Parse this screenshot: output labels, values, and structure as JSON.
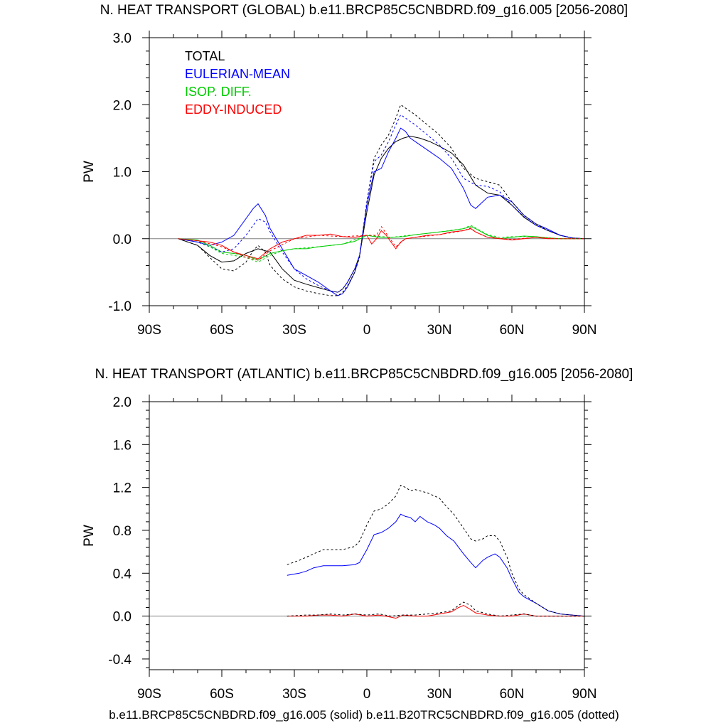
{
  "titles": {
    "global": "N. HEAT TRANSPORT (GLOBAL) b.e11.BRCP85C5CNBDRD.f09_g16.005 [2056-2080]",
    "atlantic": "N. HEAT TRANSPORT (ATLANTIC) b.e11.BRCP85C5CNBDRD.f09_g16.005 [2056-2080]"
  },
  "footer": "b.e11.BRCP85C5CNBDRD.f09_g16.005 (solid) b.e11.B20TRC5CNBDRD.f09_g16.005 (dotted)",
  "colors": {
    "total": "#000000",
    "eulerian": "#0000ff",
    "isop": "#00cc00",
    "eddy": "#ff0000",
    "zero_line": "#808080"
  },
  "chart_data": [
    {
      "type": "line",
      "title": "N. HEAT TRANSPORT (GLOBAL) b.e11.BRCP85C5CNBDRD.f09_g16.005 [2056-2080]",
      "xlabel": "",
      "ylabel": "PW",
      "xlim": [
        -90,
        90
      ],
      "ylim": [
        -1.0,
        3.0
      ],
      "xticks": [
        -90,
        -60,
        -30,
        0,
        30,
        60,
        90
      ],
      "xtick_labels": [
        "90S",
        "60S",
        "30S",
        "0",
        "30N",
        "60N",
        "90N"
      ],
      "yticks": [
        -1.0,
        0.0,
        1.0,
        2.0,
        3.0
      ],
      "ytick_labels": [
        "-1.0",
        "0.0",
        "1.0",
        "2.0",
        "3.0"
      ],
      "grid": false,
      "legend": {
        "position": "top-left",
        "entries": [
          "TOTAL",
          "EULERIAN-MEAN",
          "ISOP. DIFF.",
          "EDDY-INDUCED"
        ]
      },
      "series": [
        {
          "name": "TOTAL",
          "color": "#000000",
          "style": "solid",
          "x": [
            -78,
            -70,
            -65,
            -60,
            -55,
            -50,
            -45,
            -40,
            -35,
            -30,
            -25,
            -20,
            -15,
            -12,
            -10,
            -8,
            -5,
            -3,
            0,
            3,
            6,
            9,
            12,
            15,
            18,
            22,
            26,
            30,
            35,
            40,
            45,
            50,
            55,
            60,
            65,
            70,
            75,
            80,
            85,
            90
          ],
          "y": [
            0,
            -0.1,
            -0.25,
            -0.35,
            -0.33,
            -0.22,
            -0.15,
            -0.2,
            -0.45,
            -0.62,
            -0.68,
            -0.73,
            -0.78,
            -0.8,
            -0.75,
            -0.65,
            -0.45,
            -0.25,
            0.4,
            0.95,
            1.2,
            1.35,
            1.45,
            1.5,
            1.53,
            1.5,
            1.45,
            1.38,
            1.28,
            1.1,
            0.8,
            0.68,
            0.65,
            0.5,
            0.32,
            0.2,
            0.12,
            0.05,
            0.01,
            0
          ]
        },
        {
          "name": "EULERIAN-MEAN",
          "color": "#0000ff",
          "style": "solid",
          "x": [
            -78,
            -70,
            -65,
            -60,
            -55,
            -50,
            -47,
            -45,
            -42,
            -40,
            -35,
            -30,
            -25,
            -20,
            -15,
            -12,
            -10,
            -8,
            -5,
            -3,
            0,
            3,
            6,
            9,
            12,
            14,
            16,
            18,
            22,
            26,
            30,
            35,
            40,
            43,
            45,
            50,
            55,
            60,
            65,
            70,
            75,
            80,
            85,
            90
          ],
          "y": [
            0,
            -0.05,
            -0.1,
            -0.05,
            0.05,
            0.3,
            0.45,
            0.52,
            0.35,
            0.15,
            -0.15,
            -0.45,
            -0.55,
            -0.65,
            -0.78,
            -0.85,
            -0.82,
            -0.72,
            -0.5,
            -0.25,
            0.5,
            1.0,
            1.05,
            1.3,
            1.5,
            1.65,
            1.6,
            1.5,
            1.4,
            1.3,
            1.2,
            1.05,
            0.75,
            0.5,
            0.45,
            0.62,
            0.65,
            0.55,
            0.35,
            0.22,
            0.14,
            0.05,
            0.01,
            0
          ]
        },
        {
          "name": "ISOP. DIFF.",
          "color": "#00cc00",
          "style": "solid",
          "x": [
            -78,
            -70,
            -65,
            -60,
            -55,
            -50,
            -45,
            -40,
            -35,
            -30,
            -25,
            -20,
            -15,
            -10,
            -5,
            0,
            5,
            10,
            15,
            20,
            25,
            30,
            35,
            40,
            43,
            45,
            50,
            55,
            60,
            65,
            70,
            75,
            80,
            90
          ],
          "y": [
            0,
            -0.02,
            -0.1,
            -0.2,
            -0.22,
            -0.25,
            -0.32,
            -0.22,
            -0.18,
            -0.15,
            -0.15,
            -0.12,
            -0.1,
            -0.08,
            -0.04,
            0.05,
            0.02,
            0.02,
            0.03,
            0.06,
            0.08,
            0.1,
            0.12,
            0.15,
            0.18,
            0.15,
            0.05,
            0.0,
            0.02,
            0.04,
            0.03,
            0.01,
            0.0,
            0
          ]
        },
        {
          "name": "EDDY-INDUCED",
          "color": "#ff0000",
          "style": "solid",
          "x": [
            -78,
            -70,
            -65,
            -60,
            -55,
            -50,
            -45,
            -40,
            -35,
            -30,
            -25,
            -20,
            -15,
            -10,
            -5,
            0,
            2,
            4,
            6,
            8,
            10,
            12,
            14,
            16,
            20,
            25,
            30,
            35,
            40,
            43,
            45,
            50,
            55,
            60,
            65,
            70,
            75,
            80,
            90
          ],
          "y": [
            0,
            -0.03,
            -0.05,
            -0.1,
            -0.2,
            -0.25,
            -0.3,
            -0.15,
            -0.05,
            0.0,
            0.05,
            0.05,
            0.07,
            0.03,
            0.02,
            0.05,
            -0.08,
            0.0,
            0.12,
            0.05,
            -0.05,
            -0.15,
            -0.05,
            0.0,
            0.02,
            0.05,
            0.06,
            0.1,
            0.12,
            0.15,
            0.1,
            0.02,
            0.0,
            -0.02,
            0.0,
            0.02,
            0.0,
            0.0,
            0
          ]
        },
        {
          "name": "TOTAL (dotted)",
          "color": "#000000",
          "style": "dotted",
          "x": [
            -78,
            -70,
            -65,
            -60,
            -55,
            -50,
            -47,
            -45,
            -42,
            -40,
            -35,
            -30,
            -25,
            -20,
            -15,
            -12,
            -10,
            -8,
            -5,
            -3,
            0,
            3,
            6,
            9,
            12,
            14,
            16,
            20,
            25,
            30,
            35,
            40,
            45,
            50,
            55,
            60,
            65,
            70,
            75,
            80,
            85,
            90
          ],
          "y": [
            0,
            -0.1,
            -0.28,
            -0.45,
            -0.48,
            -0.35,
            -0.18,
            -0.1,
            -0.2,
            -0.4,
            -0.6,
            -0.72,
            -0.78,
            -0.82,
            -0.85,
            -0.85,
            -0.8,
            -0.7,
            -0.5,
            -0.28,
            0.55,
            1.2,
            1.4,
            1.55,
            1.8,
            2.0,
            1.95,
            1.85,
            1.7,
            1.55,
            1.35,
            1.05,
            0.9,
            0.85,
            0.8,
            0.55,
            0.35,
            0.22,
            0.12,
            0.05,
            0.01,
            0
          ]
        },
        {
          "name": "EULERIAN-MEAN (dotted)",
          "color": "#0000ff",
          "style": "dotted",
          "x": [
            -78,
            -70,
            -65,
            -60,
            -55,
            -50,
            -47,
            -45,
            -42,
            -40,
            -35,
            -30,
            -25,
            -20,
            -15,
            -12,
            -10,
            -8,
            -5,
            -3,
            0,
            3,
            6,
            9,
            12,
            14,
            16,
            20,
            25,
            30,
            35,
            40,
            45,
            50,
            55,
            60,
            65,
            70,
            75,
            80,
            85,
            90
          ],
          "y": [
            0,
            -0.05,
            -0.12,
            -0.2,
            -0.15,
            0.05,
            0.2,
            0.3,
            0.25,
            0.1,
            -0.2,
            -0.45,
            -0.6,
            -0.7,
            -0.78,
            -0.8,
            -0.75,
            -0.65,
            -0.45,
            -0.25,
            0.55,
            1.15,
            1.25,
            1.45,
            1.7,
            1.85,
            1.8,
            1.7,
            1.55,
            1.4,
            1.2,
            0.9,
            0.8,
            0.78,
            0.7,
            0.5,
            0.33,
            0.2,
            0.12,
            0.05,
            0.01,
            0
          ]
        },
        {
          "name": "ISOP. DIFF. (dotted)",
          "color": "#00cc00",
          "style": "dotted",
          "x": [
            -78,
            -70,
            -65,
            -60,
            -55,
            -50,
            -45,
            -40,
            -35,
            -30,
            -20,
            -10,
            0,
            10,
            20,
            30,
            40,
            43,
            45,
            50,
            55,
            60,
            70,
            80,
            90
          ],
          "y": [
            0,
            -0.03,
            -0.12,
            -0.22,
            -0.25,
            -0.28,
            -0.35,
            -0.25,
            -0.18,
            -0.15,
            -0.12,
            -0.08,
            0.05,
            0.02,
            0.06,
            0.1,
            0.15,
            0.2,
            0.16,
            0.06,
            0.02,
            0.03,
            0.03,
            0.0,
            0
          ]
        },
        {
          "name": "EDDY-INDUCED (dotted)",
          "color": "#ff0000",
          "style": "dotted",
          "x": [
            -78,
            -70,
            -60,
            -50,
            -45,
            -40,
            -30,
            -20,
            -10,
            0,
            4,
            6,
            8,
            12,
            16,
            20,
            30,
            40,
            43,
            45,
            50,
            60,
            70,
            80,
            90
          ],
          "y": [
            0,
            -0.03,
            -0.12,
            -0.28,
            -0.32,
            -0.18,
            0.0,
            0.05,
            0.03,
            0.05,
            0.05,
            0.18,
            0.08,
            -0.12,
            0.0,
            0.02,
            0.06,
            0.12,
            0.16,
            0.1,
            0.02,
            -0.01,
            0.02,
            0.0,
            0
          ]
        }
      ]
    },
    {
      "type": "line",
      "title": "N. HEAT TRANSPORT (ATLANTIC) b.e11.BRCP85C5CNBDRD.f09_g16.005 [2056-2080]",
      "xlabel": "",
      "ylabel": "PW",
      "xlim": [
        -90,
        90
      ],
      "ylim": [
        -0.5,
        2.0
      ],
      "xticks": [
        -90,
        -60,
        -30,
        0,
        30,
        60,
        90
      ],
      "xtick_labels": [
        "90S",
        "60S",
        "30S",
        "0",
        "30N",
        "60N",
        "90N"
      ],
      "yticks": [
        -0.4,
        0.0,
        0.4,
        0.8,
        1.2,
        1.6,
        2.0
      ],
      "ytick_labels": [
        "-0.4",
        "0.0",
        "0.4",
        "0.8",
        "1.2",
        "1.6",
        "2.0"
      ],
      "grid": false,
      "series": [
        {
          "name": "EULERIAN-MEAN",
          "color": "#0000ff",
          "style": "solid",
          "x": [
            -33,
            -28,
            -25,
            -22,
            -18,
            -15,
            -10,
            -5,
            -3,
            0,
            3,
            6,
            9,
            12,
            14,
            16,
            18,
            20,
            22,
            25,
            28,
            30,
            33,
            36,
            40,
            43,
            45,
            48,
            50,
            53,
            55,
            58,
            60,
            63,
            65,
            70,
            75,
            80,
            85,
            90
          ],
          "y": [
            0.38,
            0.4,
            0.42,
            0.45,
            0.47,
            0.47,
            0.47,
            0.48,
            0.5,
            0.62,
            0.76,
            0.78,
            0.82,
            0.88,
            0.95,
            0.93,
            0.92,
            0.88,
            0.93,
            0.88,
            0.85,
            0.82,
            0.75,
            0.7,
            0.58,
            0.5,
            0.45,
            0.52,
            0.55,
            0.58,
            0.55,
            0.45,
            0.35,
            0.22,
            0.18,
            0.12,
            0.05,
            0.02,
            0.01,
            0
          ]
        },
        {
          "name": "EULERIAN-MEAN (dotted)",
          "color": "#000000",
          "style": "dotted",
          "x": [
            -33,
            -28,
            -25,
            -22,
            -18,
            -15,
            -10,
            -5,
            -3,
            0,
            3,
            6,
            9,
            12,
            14,
            16,
            18,
            20,
            25,
            28,
            30,
            33,
            36,
            40,
            43,
            45,
            48,
            50,
            53,
            55,
            58,
            60,
            63,
            65,
            70,
            75,
            80,
            85,
            90
          ],
          "y": [
            0.48,
            0.52,
            0.55,
            0.58,
            0.62,
            0.62,
            0.62,
            0.65,
            0.7,
            0.85,
            0.98,
            1.0,
            1.05,
            1.12,
            1.22,
            1.2,
            1.17,
            1.18,
            1.15,
            1.12,
            1.1,
            1.02,
            0.95,
            0.82,
            0.72,
            0.7,
            0.72,
            0.75,
            0.75,
            0.7,
            0.55,
            0.4,
            0.25,
            0.2,
            0.12,
            0.05,
            0.02,
            0.01,
            0
          ]
        },
        {
          "name": "EDDY-INDUCED",
          "color": "#ff0000",
          "style": "solid",
          "x": [
            -33,
            -25,
            -20,
            -15,
            -10,
            -5,
            0,
            5,
            10,
            12,
            15,
            20,
            25,
            30,
            35,
            38,
            40,
            43,
            45,
            50,
            55,
            60,
            65,
            70,
            75,
            80,
            90
          ],
          "y": [
            0.0,
            0.0,
            0.01,
            0.01,
            0.0,
            0.02,
            0.0,
            0.01,
            -0.01,
            -0.02,
            0.01,
            0.0,
            0.0,
            0.02,
            0.04,
            0.08,
            0.1,
            0.06,
            0.03,
            0.01,
            0.0,
            0.0,
            0.02,
            0.0,
            0.0,
            0.0,
            0
          ]
        },
        {
          "name": "EDDY-INDUCED (dotted)",
          "color": "#000000",
          "style": "dotted",
          "x": [
            -33,
            -25,
            -20,
            -15,
            -10,
            -5,
            0,
            5,
            10,
            15,
            20,
            25,
            30,
            35,
            38,
            40,
            43,
            45,
            50,
            55,
            60,
            65,
            70,
            75,
            80,
            90
          ],
          "y": [
            0.0,
            0.01,
            0.01,
            0.02,
            0.01,
            0.02,
            0.01,
            0.02,
            0.0,
            0.01,
            0.01,
            0.02,
            0.03,
            0.05,
            0.1,
            0.13,
            0.1,
            0.05,
            0.02,
            0.0,
            0.01,
            0.02,
            0.0,
            0.0,
            0.0,
            0
          ]
        }
      ]
    }
  ]
}
